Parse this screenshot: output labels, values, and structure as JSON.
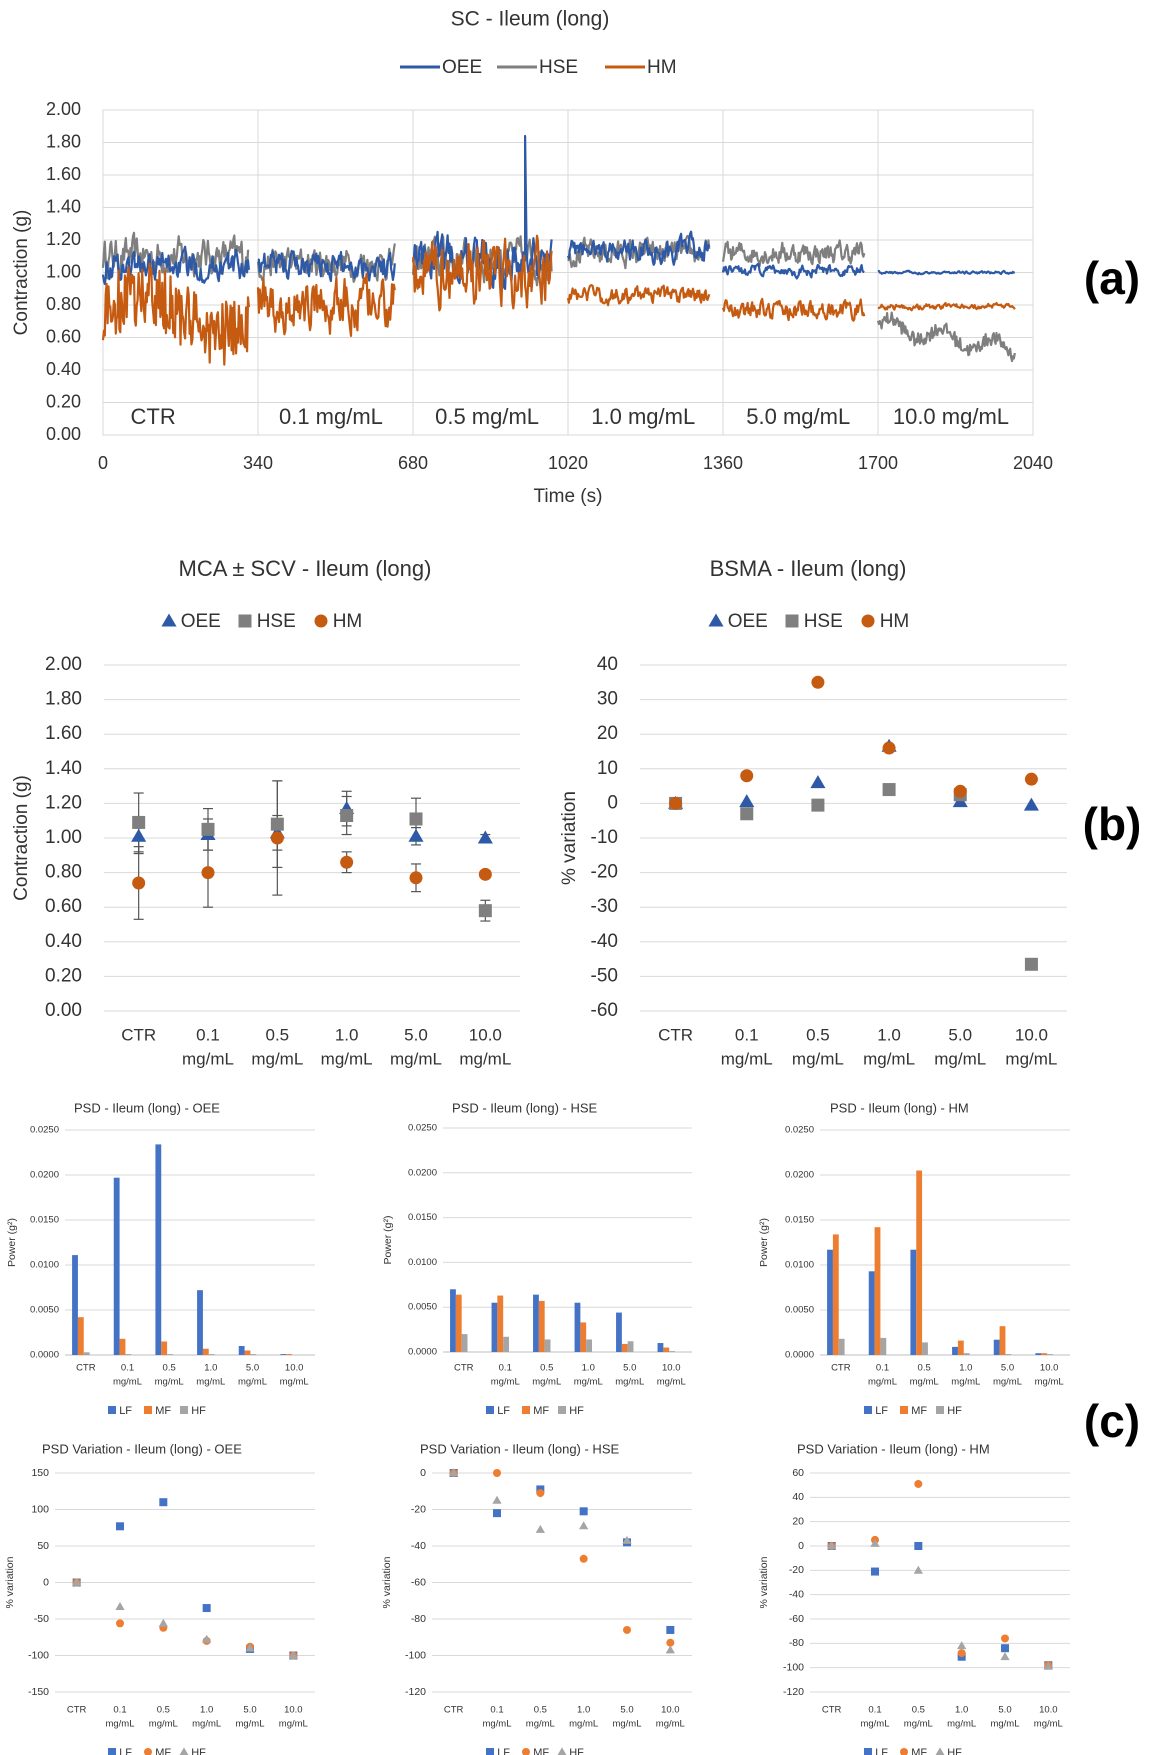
{
  "panel_labels": {
    "a": "(a)",
    "b": "(b)",
    "c": "(c)"
  },
  "colors": {
    "OEE": "#2e59a6",
    "HSE": "#7f7f7f",
    "HM": "#c55a11",
    "LF": "#4472c4",
    "MF": "#ed7d31",
    "HF": "#a5a5a5",
    "grid": "#d9d9d9",
    "axis": "#404040"
  },
  "chart_data": [
    {
      "id": "a",
      "type": "line",
      "title": "SC - Ileum (long)",
      "legend": [
        "OEE",
        "HSE",
        "HM"
      ],
      "xlabel": "Time (s)",
      "ylabel": "Contraction (g)",
      "xlim": [
        0,
        2040
      ],
      "ylim": [
        0,
        2
      ],
      "xticks": [
        0,
        340,
        680,
        1020,
        1360,
        1700,
        2040
      ],
      "yticks": [
        "0.00",
        "0.20",
        "0.40",
        "0.60",
        "0.80",
        "1.00",
        "1.20",
        "1.40",
        "1.60",
        "1.80",
        "2.00"
      ],
      "segments": [
        {
          "label": "CTR",
          "start": 0,
          "end": 320
        },
        {
          "label": "0.1 mg/mL",
          "start": 340,
          "end": 640
        },
        {
          "label": "0.5 mg/mL",
          "start": 680,
          "end": 985
        },
        {
          "label": "1.0 mg/mL",
          "start": 1020,
          "end": 1330
        },
        {
          "label": "5.0 mg/mL",
          "start": 1360,
          "end": 1670
        },
        {
          "label": "10.0 mg/mL",
          "start": 1700,
          "end": 2000
        }
      ],
      "series": [
        {
          "name": "OEE",
          "segment_mean": [
            1.04,
            1.05,
            1.08,
            1.14,
            1.01,
            1.0
          ],
          "segment_amplitude": [
            0.1,
            0.1,
            0.16,
            0.09,
            0.04,
            0.01
          ],
          "peak": {
            "t": 925,
            "value": 1.84
          }
        },
        {
          "name": "HSE",
          "segment_mean": [
            1.1,
            1.06,
            1.08,
            1.12,
            1.12,
            0.6
          ],
          "segment_amplitude": [
            0.13,
            0.11,
            0.15,
            0.09,
            0.08,
            0.07
          ]
        },
        {
          "name": "HM",
          "segment_mean": [
            0.74,
            0.8,
            1.0,
            0.86,
            0.77,
            0.79
          ],
          "segment_amplitude": [
            0.2,
            0.19,
            0.22,
            0.06,
            0.07,
            0.02
          ]
        }
      ]
    },
    {
      "id": "b1",
      "type": "scatter",
      "title": "MCA ± SCV - Ileum (long)",
      "legend": [
        "OEE",
        "HSE",
        "HM"
      ],
      "ylabel": "Contraction (g)",
      "categories": [
        [
          "CTR"
        ],
        [
          "0.1",
          "mg/mL"
        ],
        [
          "0.5",
          "mg/mL"
        ],
        [
          "1.0",
          "mg/mL"
        ],
        [
          "5.0",
          "mg/mL"
        ],
        [
          "10.0",
          "mg/mL"
        ]
      ],
      "ylim": [
        0,
        2
      ],
      "yticks": [
        "0.00",
        "0.20",
        "0.40",
        "0.60",
        "0.80",
        "1.00",
        "1.20",
        "1.40",
        "1.60",
        "1.80",
        "2.00"
      ],
      "series": [
        {
          "name": "OEE",
          "marker": "triangle",
          "values": [
            1.01,
            1.02,
            1.03,
            1.17,
            1.01,
            1.0
          ],
          "errors": [
            0.1,
            0.09,
            0.1,
            0.1,
            0.05,
            0.02
          ]
        },
        {
          "name": "HSE",
          "marker": "square",
          "values": [
            1.09,
            1.05,
            1.08,
            1.13,
            1.11,
            0.58
          ],
          "errors": [
            0.17,
            0.12,
            0.25,
            0.11,
            0.12,
            0.06
          ]
        },
        {
          "name": "HM",
          "marker": "circle",
          "values": [
            0.74,
            0.8,
            1.0,
            0.86,
            0.77,
            0.79
          ],
          "errors": [
            0.21,
            0.2,
            0.33,
            0.06,
            0.08,
            0.02
          ]
        }
      ]
    },
    {
      "id": "b2",
      "type": "scatter",
      "title": "BSMA - Ileum (long)",
      "legend": [
        "OEE",
        "HSE",
        "HM"
      ],
      "ylabel": "% variation",
      "categories": [
        [
          "CTR"
        ],
        [
          "0.1",
          "mg/mL"
        ],
        [
          "0.5",
          "mg/mL"
        ],
        [
          "1.0",
          "mg/mL"
        ],
        [
          "5.0",
          "mg/mL"
        ],
        [
          "10.0",
          "mg/mL"
        ]
      ],
      "ylim": [
        -60,
        40
      ],
      "yticks": [
        "-60",
        "-50",
        "-40",
        "-30",
        "-20",
        "-10",
        "0",
        "10",
        "20",
        "30",
        "40"
      ],
      "series": [
        {
          "name": "OEE",
          "marker": "triangle",
          "values": [
            0,
            0.5,
            6,
            16.5,
            0.5,
            -0.5
          ]
        },
        {
          "name": "HSE",
          "marker": "square",
          "values": [
            0,
            -3,
            -0.5,
            4,
            2.5,
            -46.5
          ]
        },
        {
          "name": "HM",
          "marker": "circle",
          "values": [
            0,
            8,
            35,
            16,
            3.5,
            7
          ]
        }
      ]
    },
    {
      "id": "c1",
      "type": "bar",
      "title": "PSD - Ileum (long) - OEE",
      "ylabel": "Power (g²)",
      "legend": [
        "LF",
        "MF",
        "HF"
      ],
      "categories": [
        [
          "CTR"
        ],
        [
          "0.1",
          "mg/mL"
        ],
        [
          "0.5",
          "mg/mL"
        ],
        [
          "1.0",
          "mg/mL"
        ],
        [
          "5.0",
          "mg/mL"
        ],
        [
          "10.0",
          "mg/mL"
        ]
      ],
      "ylim": [
        0,
        0.025
      ],
      "yticks": [
        "0.0000",
        "0.0050",
        "0.0100",
        "0.0150",
        "0.0200",
        "0.0250"
      ],
      "series": [
        {
          "name": "LF",
          "values": [
            0.0111,
            0.0197,
            0.0234,
            0.0072,
            0.001,
            0.0001
          ]
        },
        {
          "name": "MF",
          "values": [
            0.0042,
            0.0018,
            0.0015,
            0.0007,
            0.0005,
            0.0001
          ]
        },
        {
          "name": "HF",
          "values": [
            0.0003,
            0.0001,
            0.0001,
            0.0001,
            0.0001,
            0.0
          ]
        }
      ]
    },
    {
      "id": "c2",
      "type": "bar",
      "title": "PSD - Ileum (long) - HSE",
      "ylabel": "Power (g²)",
      "legend": [
        "LF",
        "MF",
        "HF"
      ],
      "categories": [
        [
          "CTR"
        ],
        [
          "0.1",
          "mg/mL"
        ],
        [
          "0.5",
          "mg/mL"
        ],
        [
          "1.0",
          "mg/mL"
        ],
        [
          "5.0",
          "mg/mL"
        ],
        [
          "10.0",
          "mg/mL"
        ]
      ],
      "ylim": [
        0,
        0.025
      ],
      "yticks": [
        "0.0000",
        "0.0050",
        "0.0100",
        "0.0150",
        "0.0200",
        "0.0250"
      ],
      "series": [
        {
          "name": "LF",
          "values": [
            0.007,
            0.0055,
            0.0064,
            0.0055,
            0.0044,
            0.001
          ]
        },
        {
          "name": "MF",
          "values": [
            0.0064,
            0.0063,
            0.0057,
            0.0033,
            0.0009,
            0.0005
          ]
        },
        {
          "name": "HF",
          "values": [
            0.002,
            0.0017,
            0.0014,
            0.0014,
            0.0012,
            0.0001
          ]
        }
      ]
    },
    {
      "id": "c3",
      "type": "bar",
      "title": "PSD - Ileum (long) - HM",
      "ylabel": "Power (g²)",
      "legend": [
        "LF",
        "MF",
        "HF"
      ],
      "categories": [
        [
          "CTR"
        ],
        [
          "0.1",
          "mg/mL"
        ],
        [
          "0.5",
          "mg/mL"
        ],
        [
          "1.0",
          "mg/mL"
        ],
        [
          "5.0",
          "mg/mL"
        ],
        [
          "10.0",
          "mg/mL"
        ]
      ],
      "ylim": [
        0,
        0.025
      ],
      "yticks": [
        "0.0000",
        "0.0050",
        "0.0100",
        "0.0150",
        "0.0200",
        "0.0250"
      ],
      "series": [
        {
          "name": "LF",
          "values": [
            0.0117,
            0.0093,
            0.0117,
            0.0009,
            0.0017,
            0.0002
          ]
        },
        {
          "name": "MF",
          "values": [
            0.0134,
            0.0142,
            0.0205,
            0.0016,
            0.0032,
            0.0002
          ]
        },
        {
          "name": "HF",
          "values": [
            0.0018,
            0.0019,
            0.0014,
            0.0002,
            0.0001,
            0.0001
          ]
        }
      ]
    },
    {
      "id": "c4",
      "type": "scatter",
      "title": "PSD Variation - Ileum (long) - OEE",
      "ylabel": "% variation",
      "legend": [
        "LF",
        "MF",
        "HF"
      ],
      "categories": [
        [
          "CTR"
        ],
        [
          "0.1",
          "mg/mL"
        ],
        [
          "0.5",
          "mg/mL"
        ],
        [
          "1.0",
          "mg/mL"
        ],
        [
          "5.0",
          "mg/mL"
        ],
        [
          "10.0",
          "mg/mL"
        ]
      ],
      "ylim": [
        -150,
        150
      ],
      "yticks": [
        "-150",
        "-100",
        "-50",
        "0",
        "50",
        "100",
        "150"
      ],
      "series": [
        {
          "name": "LF",
          "marker": "square",
          "values": [
            0,
            77,
            110,
            -35,
            -91,
            -100
          ]
        },
        {
          "name": "MF",
          "marker": "circle",
          "values": [
            0,
            -56,
            -62,
            -80,
            -88,
            -100
          ]
        },
        {
          "name": "HF",
          "marker": "triangle",
          "values": [
            0,
            -33,
            -56,
            -78,
            -90,
            -100
          ]
        }
      ]
    },
    {
      "id": "c5",
      "type": "scatter",
      "title": "PSD Variation - Ileum (long) - HSE",
      "ylabel": "% variation",
      "legend": [
        "LF",
        "MF",
        "HF"
      ],
      "categories": [
        [
          "CTR"
        ],
        [
          "0.1",
          "mg/mL"
        ],
        [
          "0.5",
          "mg/mL"
        ],
        [
          "1.0",
          "mg/mL"
        ],
        [
          "5.0",
          "mg/mL"
        ],
        [
          "10.0",
          "mg/mL"
        ]
      ],
      "ylim": [
        -120,
        0
      ],
      "yticks": [
        "-120",
        "-100",
        "-80",
        "-60",
        "-40",
        "-20",
        "0"
      ],
      "series": [
        {
          "name": "LF",
          "marker": "square",
          "values": [
            0,
            -22,
            -9,
            -21,
            -38,
            -86
          ]
        },
        {
          "name": "MF",
          "marker": "circle",
          "values": [
            0,
            0,
            -11,
            -47,
            -86,
            -93
          ]
        },
        {
          "name": "HF",
          "marker": "triangle",
          "values": [
            0,
            -15,
            -31,
            -29,
            -37,
            -97
          ]
        }
      ]
    },
    {
      "id": "c6",
      "type": "scatter",
      "title": "PSD Variation - Ileum (long) - HM",
      "ylabel": "% variation",
      "legend": [
        "LF",
        "MF",
        "HF"
      ],
      "categories": [
        [
          "CTR"
        ],
        [
          "0.1",
          "mg/mL"
        ],
        [
          "0.5",
          "mg/mL"
        ],
        [
          "1.0",
          "mg/mL"
        ],
        [
          "5.0",
          "mg/mL"
        ],
        [
          "10.0",
          "mg/mL"
        ]
      ],
      "ylim": [
        -120,
        60
      ],
      "yticks": [
        "-120",
        "-100",
        "-80",
        "-60",
        "-40",
        "-20",
        "0",
        "20",
        "40",
        "60"
      ],
      "series": [
        {
          "name": "LF",
          "marker": "square",
          "values": [
            0,
            -21,
            0,
            -91,
            -84,
            -98
          ]
        },
        {
          "name": "MF",
          "marker": "circle",
          "values": [
            0,
            5,
            51,
            -88,
            -76,
            -98
          ]
        },
        {
          "name": "HF",
          "marker": "triangle",
          "values": [
            0,
            2,
            -20,
            -82,
            -91,
            -99
          ]
        }
      ]
    }
  ]
}
